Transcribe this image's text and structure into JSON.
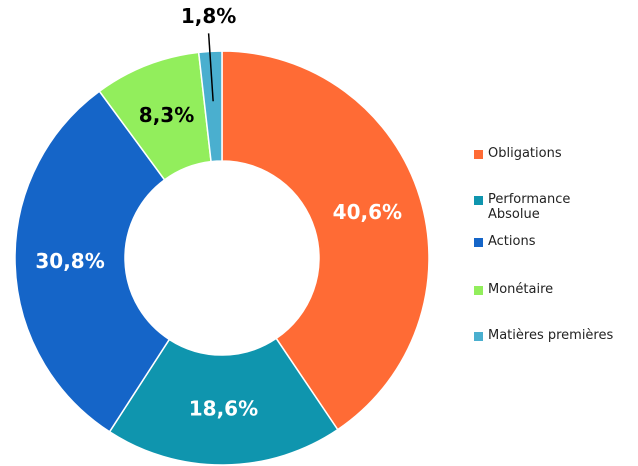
{
  "chart_data": {
    "type": "donut",
    "categories": [
      "Obligations",
      "Performance Absolue",
      "Actions",
      "Monétaire",
      "Matières premières"
    ],
    "values": [
      40.6,
      18.6,
      30.8,
      8.3,
      1.8
    ],
    "value_labels": [
      "40,6%",
      "18,6%",
      "30,8%",
      "8,3%",
      "1,8%"
    ],
    "colors": [
      "#ff6b35",
      "#0f95ae",
      "#1565c8",
      "#92ee5c",
      "#4aafcf"
    ],
    "label_colors": [
      "#ffffff",
      "#ffffff",
      "#ffffff",
      "#000000",
      "#000000"
    ],
    "legend": "right"
  }
}
